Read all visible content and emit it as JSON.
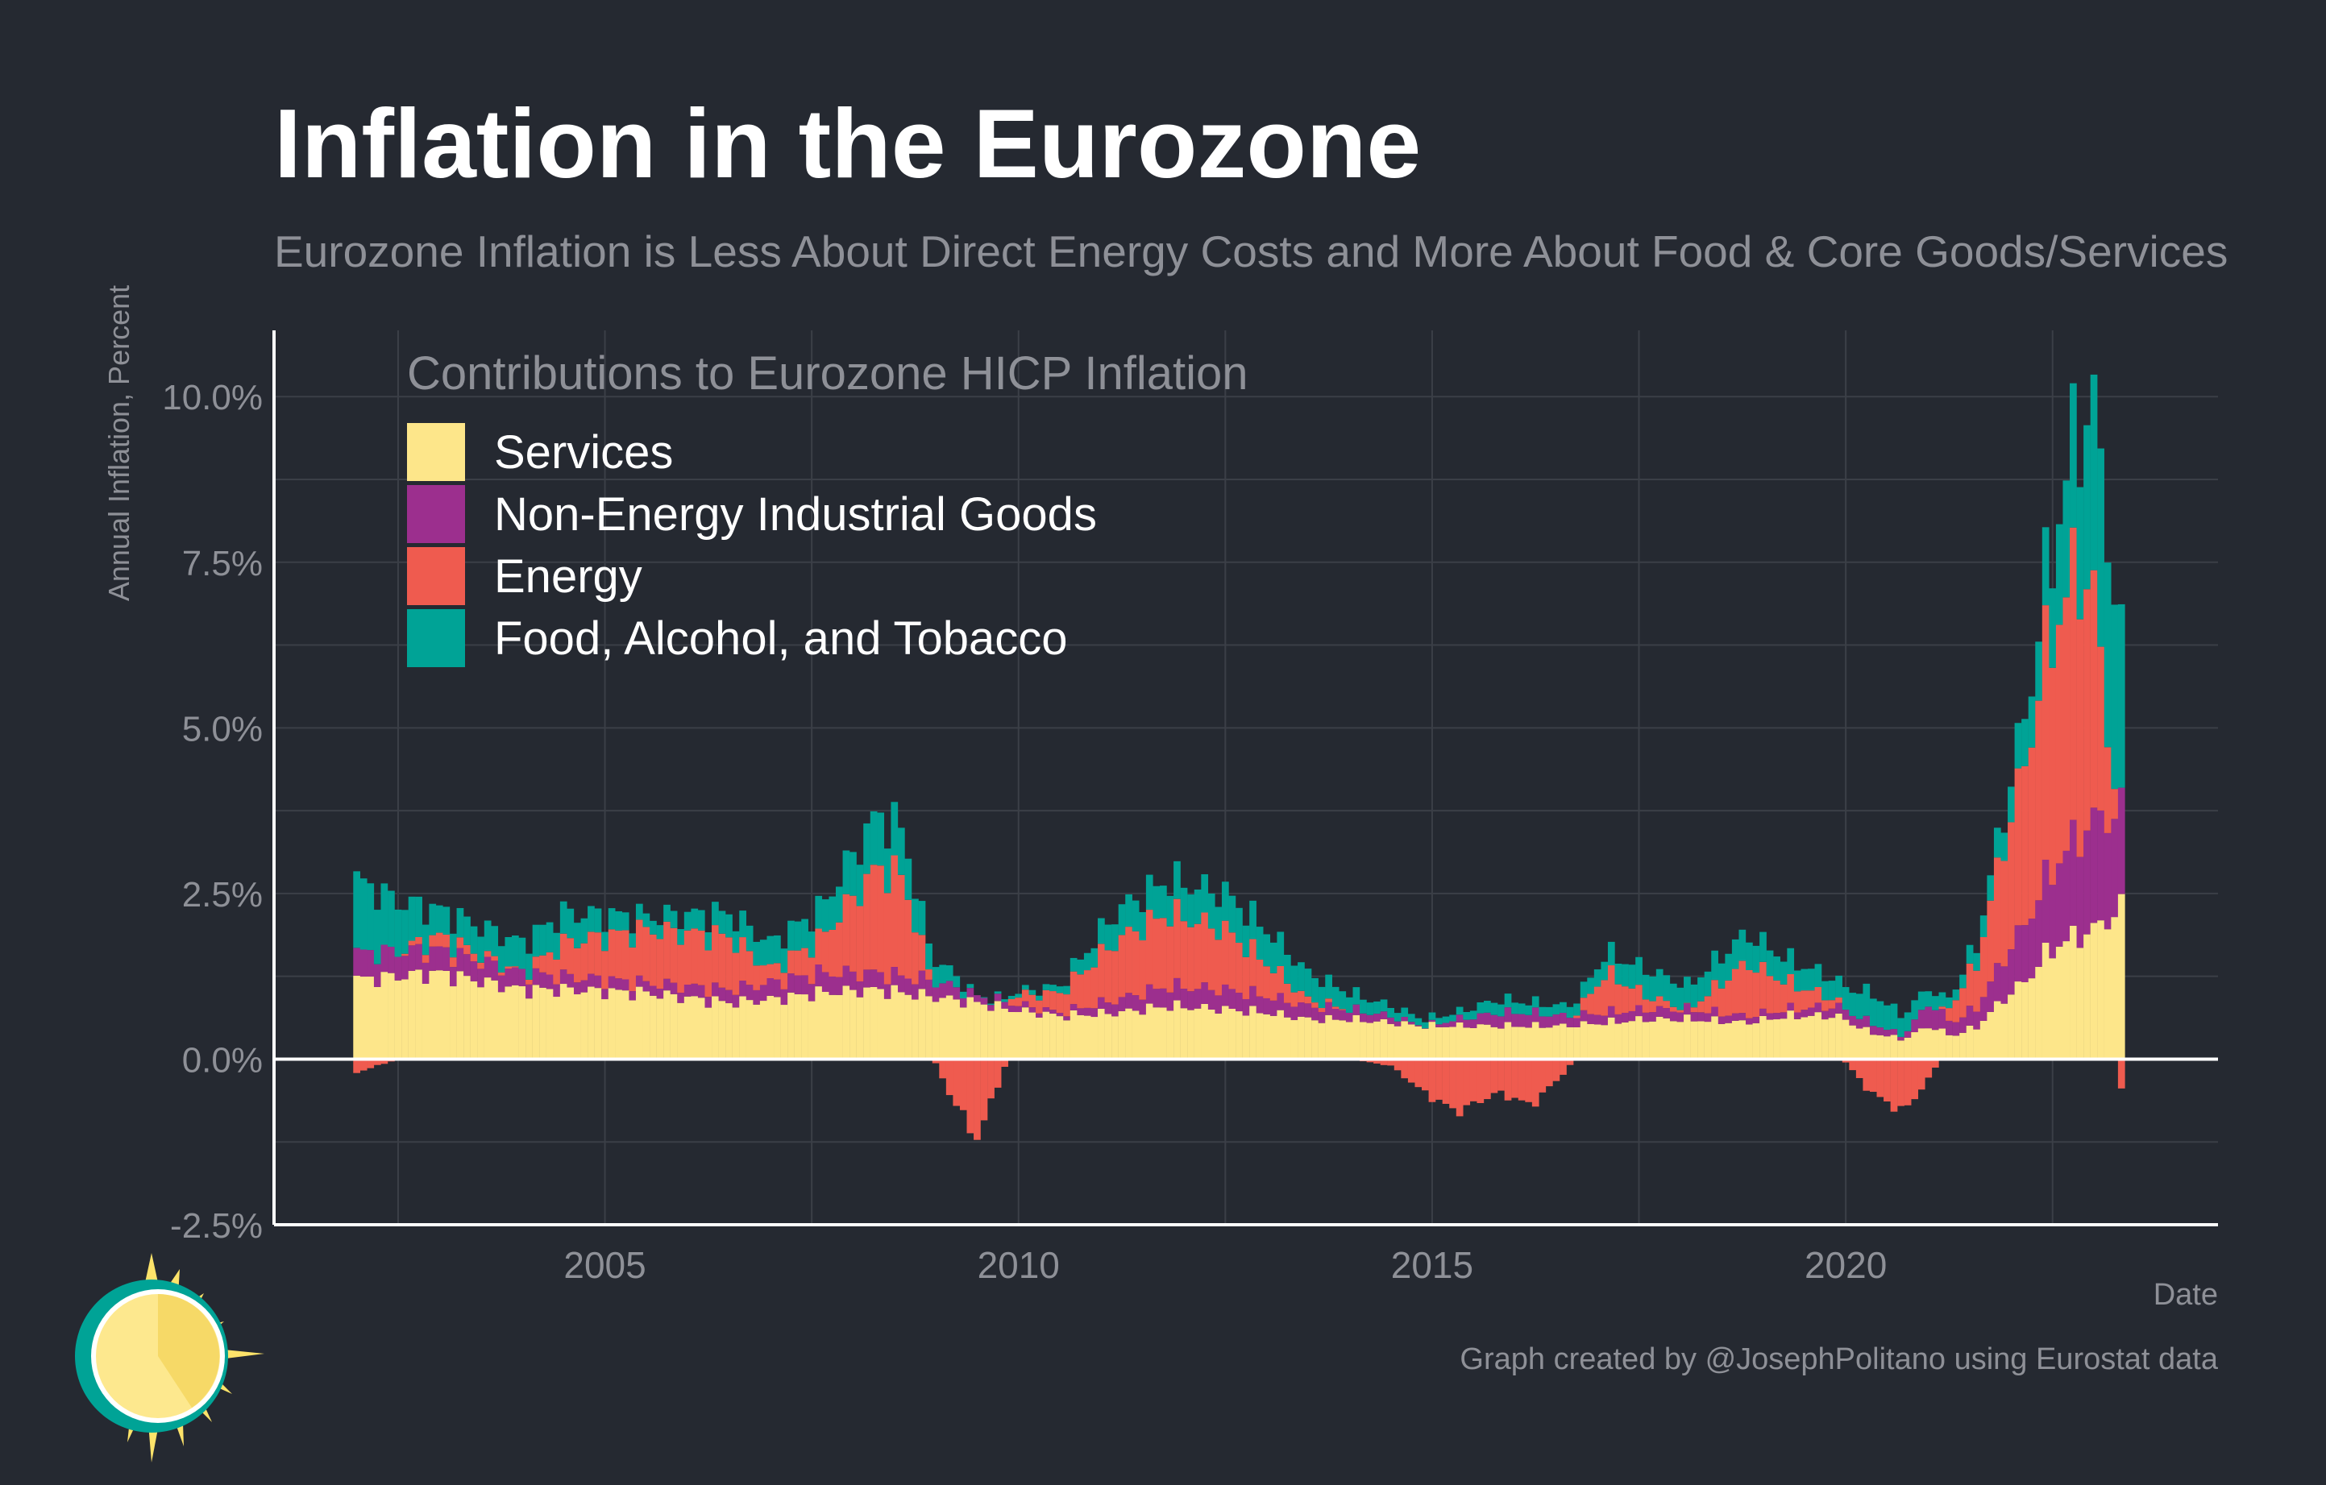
{
  "title": "Inflation in the Eurozone",
  "subtitle": "Eurozone Inflation is Less About Direct Energy Costs and More About Food & Core Goods/Services",
  "ylabel": "Annual Inflation, Percent",
  "xlabel": "Date",
  "caption": "Graph created by @JosephPolitano using Eurostat data",
  "legend": {
    "title": "Contributions to Eurozone HICP Inflation",
    "items": [
      {
        "label": "Services",
        "color": "#fde68a"
      },
      {
        "label": "Non-Energy Industrial Goods",
        "color": "#9c2f8e"
      },
      {
        "label": "Energy",
        "color": "#ef5b4f"
      },
      {
        "label": "Food, Alcohol, and Tobacco",
        "color": "#00a396"
      }
    ]
  },
  "chart_data": {
    "type": "bar",
    "stacked": true,
    "frequency": "monthly",
    "x_start": "2002-01",
    "x_end": "2023-05",
    "xlim": [
      2001.0,
      2024.5
    ],
    "ylim": [
      -2.5,
      11.0
    ],
    "grid": true,
    "legend_position": "top-left",
    "y_ticks": [
      "-2.5%",
      "0.0%",
      "2.5%",
      "5.0%",
      "7.5%",
      "10.0%"
    ],
    "y_tick_values": [
      -2.5,
      0,
      2.5,
      5,
      7.5,
      10
    ],
    "x_ticks": [
      "2005",
      "2010",
      "2015",
      "2020"
    ],
    "x_tick_values": [
      2005,
      2010,
      2015,
      2020
    ],
    "anchor_dates": [
      2002.0,
      2003.0,
      2004.0,
      2004.5,
      2005.5,
      2006.5,
      2007.0,
      2007.6,
      2008.3,
      2008.6,
      2008.9,
      2009.2,
      2009.5,
      2009.9,
      2010.5,
      2011.2,
      2011.8,
      2012.5,
      2013.0,
      2013.5,
      2014.0,
      2014.5,
      2014.9,
      2015.3,
      2015.8,
      2016.2,
      2016.6,
      2017.1,
      2017.6,
      2018.1,
      2018.8,
      2019.3,
      2019.9,
      2020.3,
      2020.7,
      2021.0,
      2021.3,
      2021.6,
      2021.9,
      2022.2,
      2022.4,
      2022.6,
      2022.8,
      2023.0,
      2023.2,
      2023.33
    ],
    "series": [
      {
        "name": "Services",
        "color": "#fde68a",
        "values": [
          1.2,
          1.3,
          1.05,
          1.05,
          1.0,
          0.85,
          0.9,
          1.0,
          1.05,
          1.0,
          0.95,
          0.9,
          0.85,
          0.75,
          0.65,
          0.7,
          0.8,
          0.75,
          0.7,
          0.6,
          0.6,
          0.55,
          0.5,
          0.5,
          0.5,
          0.5,
          0.5,
          0.55,
          0.6,
          0.6,
          0.55,
          0.65,
          0.65,
          0.4,
          0.3,
          0.5,
          0.35,
          0.5,
          0.9,
          1.2,
          1.55,
          1.75,
          1.85,
          1.95,
          2.15,
          2.25
        ]
      },
      {
        "name": "Non-Energy Industrial Goods",
        "color": "#9c2f8e",
        "values": [
          0.4,
          0.35,
          0.25,
          0.2,
          0.15,
          0.2,
          0.25,
          0.3,
          0.25,
          0.25,
          0.25,
          0.2,
          0.1,
          0.1,
          0.05,
          0.2,
          0.3,
          0.3,
          0.25,
          0.2,
          0.15,
          0.1,
          0.0,
          0.1,
          0.2,
          0.2,
          0.15,
          0.15,
          0.15,
          0.15,
          0.1,
          0.1,
          0.15,
          0.15,
          0.05,
          0.35,
          0.2,
          0.3,
          0.6,
          0.9,
          1.1,
          1.3,
          1.5,
          1.65,
          1.55,
          1.45
        ]
      },
      {
        "name": "Energy",
        "color": "#ef5b4f",
        "values": [
          -0.2,
          0.2,
          0.0,
          0.5,
          0.8,
          0.8,
          0.2,
          0.5,
          1.6,
          1.5,
          0.2,
          -0.6,
          -1.2,
          0.1,
          0.3,
          0.9,
          1.1,
          0.9,
          0.5,
          0.1,
          0.0,
          -0.1,
          -0.5,
          -0.8,
          -0.5,
          -0.7,
          -0.2,
          0.6,
          0.2,
          0.0,
          0.8,
          0.4,
          0.1,
          -0.5,
          -0.8,
          -0.3,
          0.3,
          0.7,
          1.7,
          2.5,
          3.4,
          3.7,
          4.1,
          3.4,
          1.0,
          -0.4
        ]
      },
      {
        "name": "Food, Alcohol, and Tobacco",
        "color": "#00a396",
        "values": [
          1.1,
          0.4,
          0.45,
          0.45,
          0.2,
          0.35,
          0.4,
          0.45,
          0.8,
          0.7,
          0.4,
          0.2,
          0.0,
          0.05,
          0.1,
          0.45,
          0.5,
          0.55,
          0.5,
          0.4,
          0.25,
          0.15,
          0.1,
          0.1,
          0.2,
          0.15,
          0.15,
          0.3,
          0.4,
          0.35,
          0.45,
          0.35,
          0.3,
          0.45,
          0.3,
          0.25,
          0.15,
          0.3,
          0.45,
          0.75,
          1.0,
          1.6,
          2.1,
          2.8,
          3.05,
          2.5
        ]
      }
    ]
  }
}
